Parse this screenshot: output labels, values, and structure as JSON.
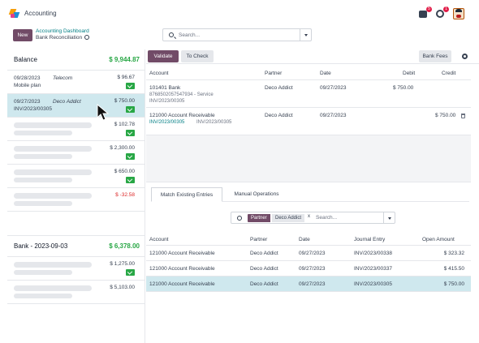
{
  "app": {
    "name": "Accounting"
  },
  "notifications": {
    "chat_count": "5",
    "activity_count": "1"
  },
  "control_panel": {
    "new_label": "New",
    "breadcrumb_parent": "Accounting Dashboard",
    "breadcrumb_current": "Bank Reconciliation",
    "search_placeholder": "Search..."
  },
  "journals": [
    {
      "name": "Balance",
      "balance": "$ 9,944.87",
      "lines": [
        {
          "date": "09/28/2023",
          "partner": "Telecom",
          "ref": "Mobile plan",
          "amount": "$ 96.67",
          "checked": true,
          "placeholder": false,
          "selected": false
        },
        {
          "date": "09/27/2023",
          "partner": "Deco Addict",
          "ref": "INV/2023/00305",
          "amount": "$ 750.00",
          "checked": true,
          "placeholder": false,
          "selected": true
        },
        {
          "date": "",
          "partner": "",
          "ref": "",
          "amount": "$ 102.78",
          "checked": true,
          "placeholder": true,
          "selected": false
        },
        {
          "date": "",
          "partner": "",
          "ref": "",
          "amount": "$ 2,300.00",
          "checked": true,
          "placeholder": true,
          "selected": false
        },
        {
          "date": "",
          "partner": "",
          "ref": "",
          "amount": "$ 650.00",
          "checked": true,
          "placeholder": true,
          "selected": false
        },
        {
          "date": "",
          "partner": "",
          "ref": "",
          "amount": "$ -32.58",
          "checked": false,
          "placeholder": true,
          "selected": false
        }
      ]
    },
    {
      "name": "Bank - 2023-09-03",
      "balance": "$ 6,378.00",
      "lines": [
        {
          "date": "",
          "partner": "",
          "ref": "",
          "amount": "$ 1,275.00",
          "checked": true,
          "placeholder": true,
          "selected": false
        },
        {
          "date": "",
          "partner": "",
          "ref": "",
          "amount": "$ 5,103.00",
          "checked": false,
          "placeholder": true,
          "selected": false
        }
      ]
    }
  ],
  "toolbar": {
    "validate_label": "Validate",
    "to_check_label": "To Check",
    "bank_fees_label": "Bank Fees"
  },
  "entry_table": {
    "headers": {
      "account": "Account",
      "partner": "Partner",
      "date": "Date",
      "debit": "Debit",
      "credit": "Credit"
    },
    "rows": [
      {
        "account": "101401 Bank",
        "sub": "8768502057547934 - Service",
        "sub2": "INV/2023/00305",
        "partner": "Deco Addict",
        "date": "09/27/2023",
        "debit": "$ 750.00",
        "credit": ""
      },
      {
        "account": "121000 Account Receivable",
        "sub": "INV/2023/00305",
        "sub2": "INV/2023/00305",
        "partner": "Deco Addict",
        "date": "09/27/2023",
        "debit": "",
        "credit": "$ 750.00"
      }
    ]
  },
  "tabs": {
    "match_label": "Match Existing Entries",
    "manual_label": "Manual Operations"
  },
  "filter": {
    "facet_label": "Partner",
    "facet_value": "Deco Addict",
    "facet_remove": "x",
    "placeholder": "Search..."
  },
  "match_table": {
    "headers": {
      "account": "Account",
      "partner": "Partner",
      "date": "Date",
      "journal_entry": "Journal Entry",
      "open_amount": "Open Amount"
    },
    "rows": [
      {
        "account": "121000 Account Receivable",
        "partner": "Deco Addict",
        "date": "09/27/2023",
        "entry": "INV/2023/00338",
        "amount": "$ 323.32",
        "highlight": false
      },
      {
        "account": "121000 Account Receivable",
        "partner": "Deco Addict",
        "date": "09/27/2023",
        "entry": "INV/2023/00337",
        "amount": "$ 415.50",
        "highlight": false
      },
      {
        "account": "121000 Account Receivable",
        "partner": "Deco Addict",
        "date": "09/27/2023",
        "entry": "INV/2023/00305",
        "amount": "$ 750.00",
        "highlight": true
      }
    ]
  }
}
